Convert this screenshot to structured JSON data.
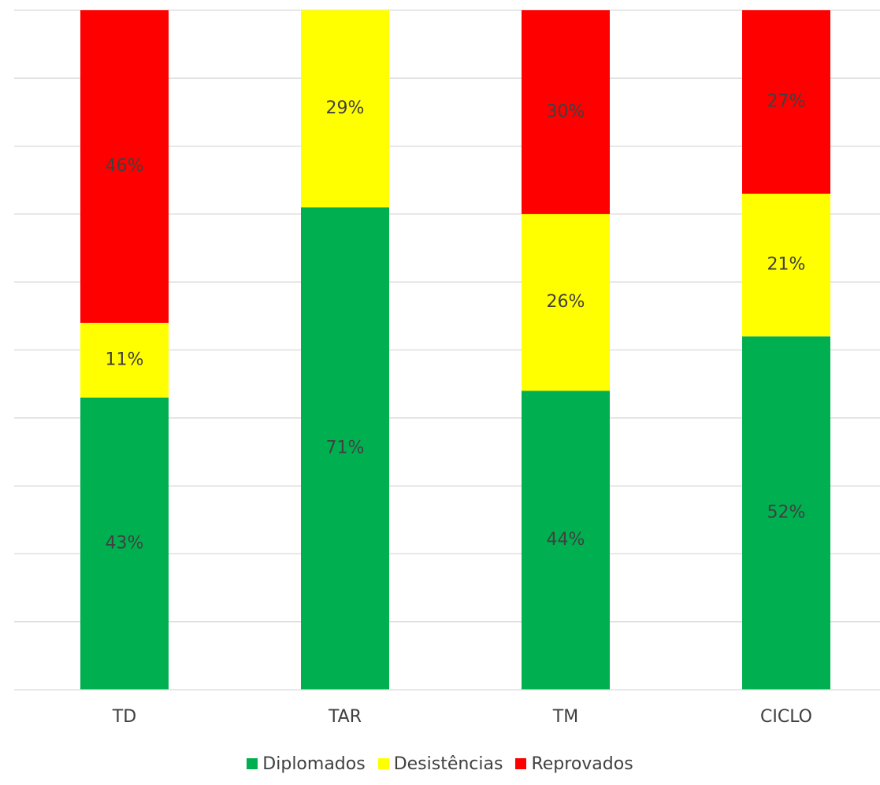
{
  "chart_data": {
    "type": "bar",
    "stacked": true,
    "categories": [
      "TD",
      "TAR",
      "TM",
      "CICLO"
    ],
    "series": [
      {
        "name": "Diplomados",
        "color": "#00b050",
        "values": [
          43,
          71,
          44,
          52
        ],
        "labels": [
          "43%",
          "71%",
          "44%",
          "52%"
        ]
      },
      {
        "name": "Desistências",
        "color": "#ffff00",
        "values": [
          11,
          29,
          26,
          21
        ],
        "labels": [
          "11%",
          "29%",
          "26%",
          "21%"
        ]
      },
      {
        "name": "Reprovados",
        "color": "#ff0000",
        "values": [
          46,
          0,
          30,
          27
        ],
        "labels": [
          "46%",
          "",
          "30%",
          "27%"
        ]
      }
    ],
    "ylim": [
      0,
      100
    ],
    "grid": true,
    "legend_position": "bottom"
  }
}
